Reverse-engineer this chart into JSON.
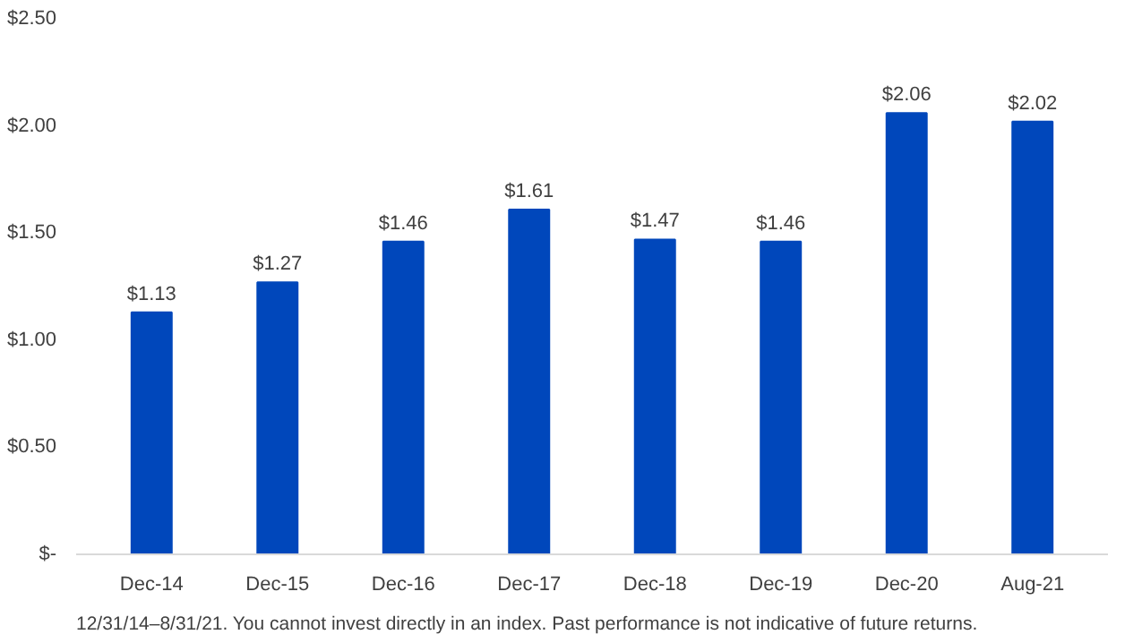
{
  "chart_data": {
    "type": "bar",
    "categories": [
      "Dec-14",
      "Dec-15",
      "Dec-16",
      "Dec-17",
      "Dec-18",
      "Dec-19",
      "Dec-20",
      "Aug-21"
    ],
    "values": [
      1.13,
      1.27,
      1.46,
      1.61,
      1.47,
      1.46,
      2.06,
      2.02
    ],
    "value_labels": [
      "$1.13",
      "$1.27",
      "$1.46",
      "$1.61",
      "$1.47",
      "$1.46",
      "$2.06",
      "$2.02"
    ],
    "color": "#0047bb",
    "ylim": [
      0,
      2.5
    ],
    "yticks": [
      {
        "value": 0,
        "label": "$-"
      },
      {
        "value": 0.5,
        "label": "$0.50"
      },
      {
        "value": 1,
        "label": "$1.00"
      },
      {
        "value": 1.5,
        "label": "$1.50"
      },
      {
        "value": 2,
        "label": "$2.00"
      },
      {
        "value": 2.5,
        "label": "$2.50"
      }
    ],
    "grid": false,
    "annotations": [
      "12/31/14–8/31/21. You cannot invest directly in an index. Past performance is not indicative of future returns."
    ]
  }
}
